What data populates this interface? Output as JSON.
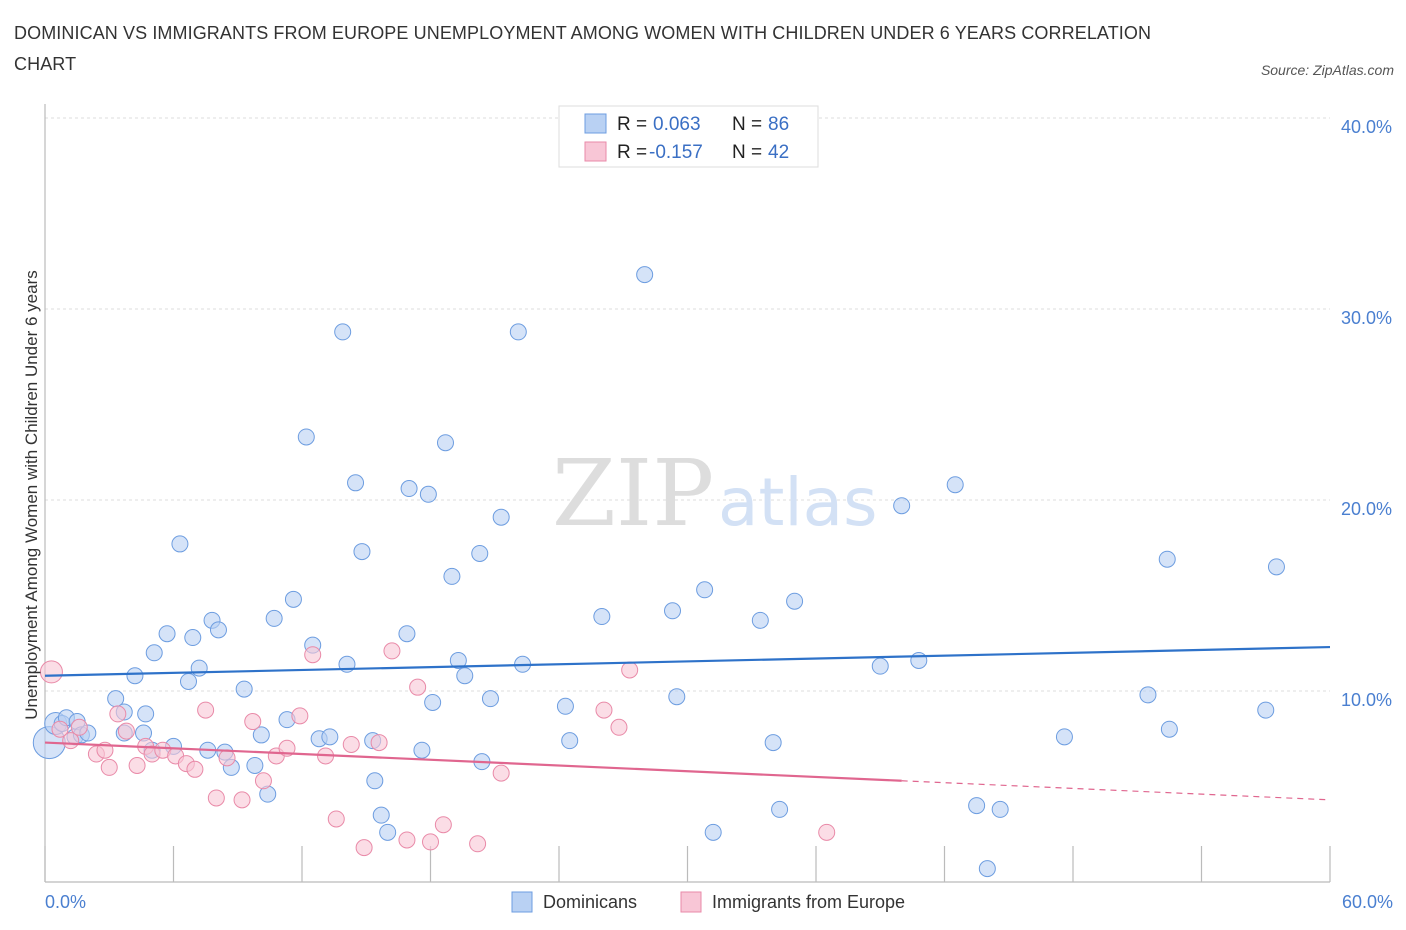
{
  "title": "DOMINICAN VS IMMIGRANTS FROM EUROPE UNEMPLOYMENT AMONG WOMEN WITH CHILDREN UNDER 6 YEARS CORRELATION CHART",
  "source": "Source: ZipAtlas.com",
  "watermark": {
    "zip": "ZIP",
    "atlas": "atlas"
  },
  "legend_box": {
    "rows": [
      {
        "r_label": "R =",
        "r_value": "0.063",
        "n_label": "N =",
        "n_value": "86"
      },
      {
        "r_label": "R =",
        "r_value": "-0.157",
        "n_label": "N =",
        "n_value": "42"
      }
    ]
  },
  "colors": {
    "blue_fill": "#b9d1f3",
    "blue_stroke": "#6d9de0",
    "blue_line": "#2e72c9",
    "pink_fill": "#f8c6d6",
    "pink_stroke": "#e98aa8",
    "pink_line": "#e0668f",
    "axis_text": "#4a7fd0"
  },
  "chart_data": {
    "type": "scatter",
    "title": "DOMINICAN VS IMMIGRANTS FROM EUROPE UNEMPLOYMENT AMONG WOMEN WITH CHILDREN UNDER 6 YEARS CORRELATION CHART",
    "xlabel": "",
    "ylabel": "Unemployment Among Women with Children Under 6 years",
    "xlim": [
      0,
      60
    ],
    "ylim": [
      0,
      40
    ],
    "x_tick_labels": [
      "0.0%",
      "60.0%"
    ],
    "y_ticks": [
      10,
      20,
      30,
      40
    ],
    "y_tick_labels": [
      "10.0%",
      "20.0%",
      "30.0%",
      "40.0%"
    ],
    "grid": true,
    "legend": [
      "Dominicans",
      "Immigrants from Europe"
    ],
    "series": [
      {
        "name": "Dominicans",
        "r": 0.063,
        "n": 86,
        "trend": {
          "x": [
            0,
            60
          ],
          "y": [
            10.8,
            12.3
          ]
        },
        "points": [
          [
            0.2,
            7.3
          ],
          [
            0.5,
            8.3
          ],
          [
            0.8,
            8.3
          ],
          [
            1.0,
            8.6
          ],
          [
            1.4,
            7.6
          ],
          [
            1.5,
            8.4
          ],
          [
            1.7,
            7.7
          ],
          [
            2.0,
            7.8
          ],
          [
            3.3,
            9.6
          ],
          [
            3.7,
            8.9
          ],
          [
            3.7,
            7.8
          ],
          [
            4.2,
            10.8
          ],
          [
            4.6,
            7.8
          ],
          [
            4.7,
            8.8
          ],
          [
            5.0,
            6.9
          ],
          [
            5.1,
            12.0
          ],
          [
            5.7,
            13.0
          ],
          [
            6.0,
            7.1
          ],
          [
            6.3,
            17.7
          ],
          [
            6.7,
            10.5
          ],
          [
            6.9,
            12.8
          ],
          [
            7.2,
            11.2
          ],
          [
            7.6,
            6.9
          ],
          [
            7.8,
            13.7
          ],
          [
            8.1,
            13.2
          ],
          [
            8.4,
            6.8
          ],
          [
            8.7,
            6.0
          ],
          [
            9.3,
            10.1
          ],
          [
            9.8,
            6.1
          ],
          [
            10.1,
            7.7
          ],
          [
            10.4,
            4.6
          ],
          [
            10.7,
            13.8
          ],
          [
            11.3,
            8.5
          ],
          [
            11.6,
            14.8
          ],
          [
            12.2,
            23.3
          ],
          [
            12.5,
            12.4
          ],
          [
            12.8,
            7.5
          ],
          [
            13.3,
            7.6
          ],
          [
            13.9,
            28.8
          ],
          [
            14.1,
            11.4
          ],
          [
            14.5,
            20.9
          ],
          [
            14.8,
            17.3
          ],
          [
            15.3,
            7.4
          ],
          [
            15.4,
            5.3
          ],
          [
            15.7,
            3.5
          ],
          [
            16.0,
            2.6
          ],
          [
            16.9,
            13.0
          ],
          [
            17.0,
            20.6
          ],
          [
            17.6,
            6.9
          ],
          [
            17.9,
            20.3
          ],
          [
            18.1,
            9.4
          ],
          [
            18.7,
            23.0
          ],
          [
            19.0,
            16.0
          ],
          [
            19.3,
            11.6
          ],
          [
            19.6,
            10.8
          ],
          [
            20.3,
            17.2
          ],
          [
            20.4,
            6.3
          ],
          [
            20.8,
            9.6
          ],
          [
            21.3,
            19.1
          ],
          [
            22.1,
            28.8
          ],
          [
            22.3,
            11.4
          ],
          [
            24.3,
            9.2
          ],
          [
            24.5,
            7.4
          ],
          [
            26.0,
            13.9
          ],
          [
            28.0,
            31.8
          ],
          [
            29.3,
            14.2
          ],
          [
            29.5,
            9.7
          ],
          [
            30.8,
            15.3
          ],
          [
            31.2,
            2.6
          ],
          [
            33.4,
            13.7
          ],
          [
            34.0,
            7.3
          ],
          [
            34.3,
            3.8
          ],
          [
            35.0,
            14.7
          ],
          [
            39.0,
            11.3
          ],
          [
            40.0,
            19.7
          ],
          [
            40.8,
            11.6
          ],
          [
            42.5,
            20.8
          ],
          [
            43.5,
            4.0
          ],
          [
            44.0,
            0.7
          ],
          [
            44.6,
            3.8
          ],
          [
            47.6,
            7.6
          ],
          [
            51.5,
            9.8
          ],
          [
            52.4,
            16.9
          ],
          [
            52.5,
            8.0
          ],
          [
            57.0,
            9.0
          ],
          [
            57.5,
            16.5
          ]
        ]
      },
      {
        "name": "Immigrants from Europe",
        "r": -0.157,
        "n": 42,
        "trend": {
          "x": [
            0,
            40
          ],
          "y": [
            7.3,
            5.3
          ]
        },
        "trend_dashed": {
          "x": [
            40,
            60
          ],
          "y": [
            5.3,
            4.3
          ]
        },
        "points": [
          [
            0.3,
            11.0
          ],
          [
            0.7,
            8.0
          ],
          [
            1.2,
            7.4
          ],
          [
            1.6,
            8.1
          ],
          [
            2.4,
            6.7
          ],
          [
            2.8,
            6.9
          ],
          [
            3.0,
            6.0
          ],
          [
            3.4,
            8.8
          ],
          [
            3.8,
            7.9
          ],
          [
            4.3,
            6.1
          ],
          [
            4.7,
            7.1
          ],
          [
            5.0,
            6.7
          ],
          [
            5.5,
            6.9
          ],
          [
            6.1,
            6.6
          ],
          [
            6.6,
            6.2
          ],
          [
            7.0,
            5.9
          ],
          [
            7.5,
            9.0
          ],
          [
            8.0,
            4.4
          ],
          [
            8.5,
            6.5
          ],
          [
            9.2,
            4.3
          ],
          [
            9.7,
            8.4
          ],
          [
            10.2,
            5.3
          ],
          [
            10.8,
            6.6
          ],
          [
            11.3,
            7.0
          ],
          [
            11.9,
            8.7
          ],
          [
            12.5,
            11.9
          ],
          [
            13.1,
            6.6
          ],
          [
            13.6,
            3.3
          ],
          [
            14.3,
            7.2
          ],
          [
            14.9,
            1.8
          ],
          [
            15.6,
            7.3
          ],
          [
            16.2,
            12.1
          ],
          [
            16.9,
            2.2
          ],
          [
            17.4,
            10.2
          ],
          [
            18.0,
            2.1
          ],
          [
            18.6,
            3.0
          ],
          [
            20.2,
            2.0
          ],
          [
            21.3,
            5.7
          ],
          [
            26.1,
            9.0
          ],
          [
            26.8,
            8.1
          ],
          [
            27.3,
            11.1
          ],
          [
            36.5,
            2.6
          ]
        ]
      }
    ]
  },
  "bottom_legend": {
    "items": [
      {
        "label": "Dominicans"
      },
      {
        "label": "Immigrants from Europe"
      }
    ]
  }
}
